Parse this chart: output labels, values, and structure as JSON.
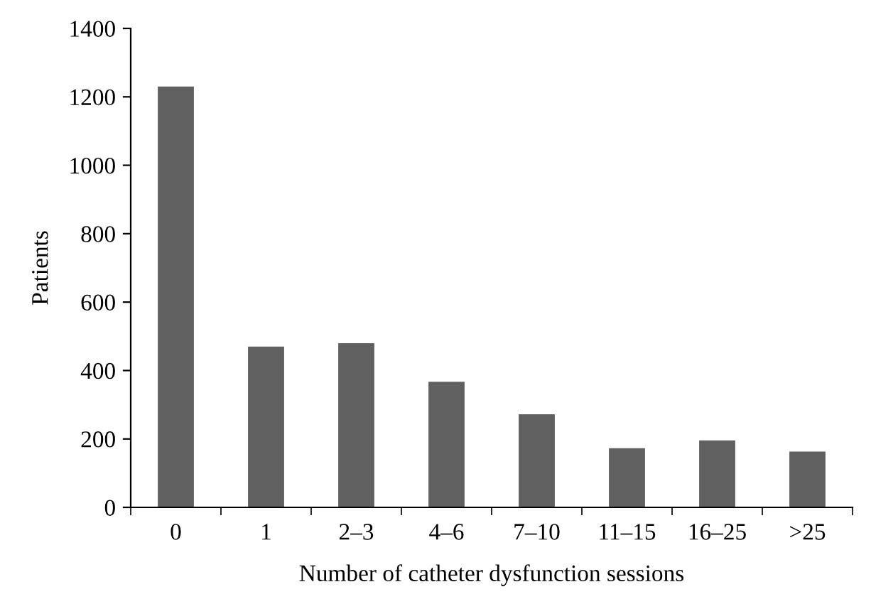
{
  "chart_data": {
    "type": "bar",
    "xlabel": "Number of catheter dysfunction sessions",
    "ylabel": "Patients",
    "categories": [
      "0",
      "1",
      "2–3",
      "4–6",
      "7–10",
      "11–15",
      "16–25",
      ">25"
    ],
    "values": [
      1230,
      470,
      480,
      367,
      272,
      173,
      196,
      163
    ],
    "color": "#606060",
    "ylim": [
      0,
      1400
    ],
    "yticks": [
      0,
      200,
      400,
      600,
      800,
      1000,
      1200,
      1400
    ],
    "grid": false,
    "legend": false
  }
}
